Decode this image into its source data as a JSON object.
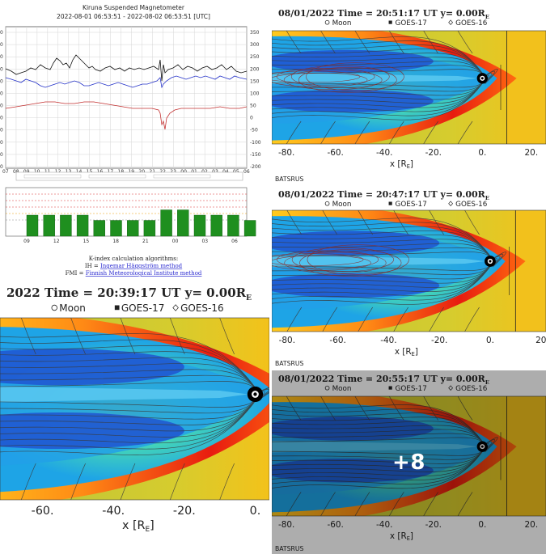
{
  "kiruna": {
    "title": "Kiruna Suspended Magnetometer",
    "subtitle": "2022-08-01 06:53:51 - 2022-08-02 06:53:51 [UTC]",
    "right_ticks": [
      "350",
      "300",
      "250",
      "200",
      "150",
      "100",
      "50",
      "0",
      "-50",
      "-100",
      "-150",
      "-200"
    ],
    "hour_ticks": [
      "07",
      "08",
      "09",
      "10",
      "11",
      "12",
      "13",
      "14",
      "15",
      "16",
      "17",
      "18",
      "19",
      "20",
      "21",
      "22",
      "23",
      "00",
      "01",
      "02",
      "03",
      "04",
      "05",
      "06"
    ],
    "k_ticks": [
      "09",
      "12",
      "15",
      "18",
      "21",
      "00",
      "03",
      "06"
    ],
    "k_values": [
      4,
      4,
      4,
      4,
      3,
      3,
      3,
      3,
      5,
      5,
      4,
      4,
      4,
      3
    ],
    "k_algorithms_label": "K-index calculation algorithms:",
    "ih_prefix": "IH = ",
    "ih_link": "Ingemar Häggström method",
    "fmi_prefix": "FMI = ",
    "fmi_link": "Finnish Meteorological Institute method"
  },
  "sims": [
    {
      "header": "08/01/2022 Time = 20:51:17 UT y= 0.00R",
      "legend": [
        "Moon",
        "GOES-17",
        "GOES-16"
      ],
      "x_ticks": [
        "-80.",
        "-60.",
        "-40.",
        "-20.",
        "0.",
        "20."
      ],
      "xlabel": "x [R",
      "source": "BATSRUS"
    },
    {
      "header": "08/01/2022 Time = 20:47:17 UT y= 0.00R",
      "legend": [
        "Moon",
        "GOES-17",
        "GOES-16"
      ],
      "x_ticks": [
        "-80.",
        "-60.",
        "-40.",
        "-20.",
        "0.",
        "20"
      ],
      "xlabel": "x [R",
      "source": "BATSRUS"
    },
    {
      "header": "2022 Time = 20:39:17 UT y= 0.00R",
      "legend": [
        "Moon",
        "GOES-17",
        "GOES-16"
      ],
      "x_ticks": [
        "-60.",
        "-40.",
        "-20.",
        "0."
      ],
      "xlabel": "x [R",
      "source": ""
    },
    {
      "header": "08/01/2022 Time = 20:55:17 UT y= 0.00R",
      "legend": [
        "Moon",
        "GOES-17",
        "GOES-16"
      ],
      "x_ticks": [
        "-80.",
        "-60.",
        "-40.",
        "-20.",
        "0.",
        "20."
      ],
      "xlabel": "x [R",
      "source": "BATSRUS"
    }
  ],
  "subscript_e": "E",
  "bracket_close": "]",
  "more_label": "+8"
}
